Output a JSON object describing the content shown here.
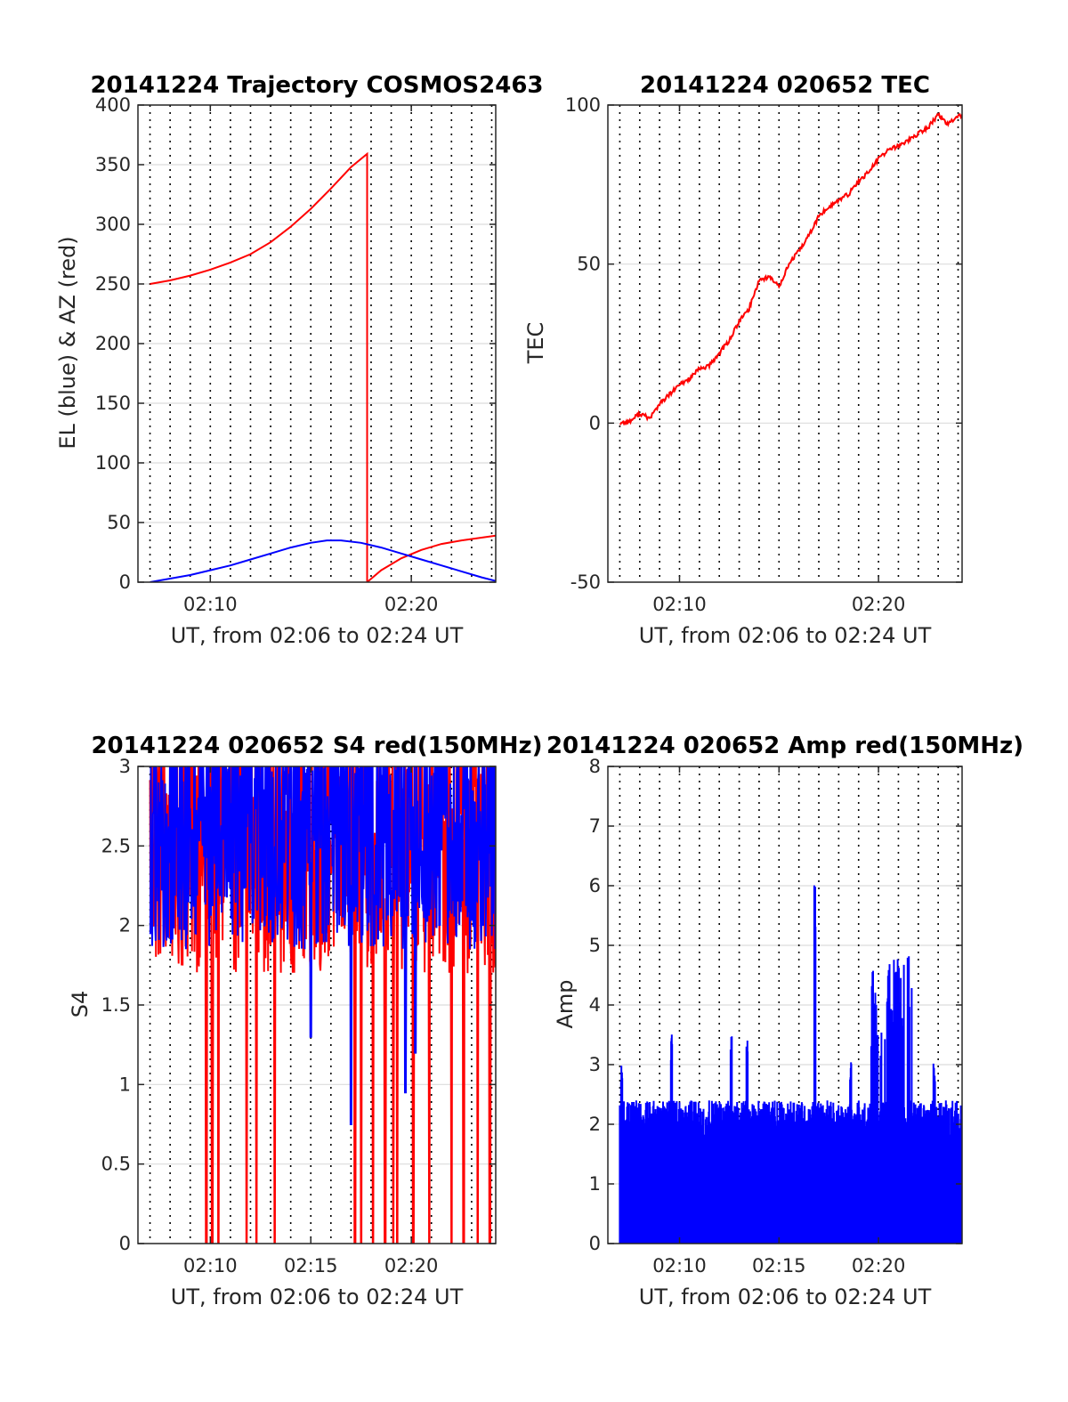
{
  "colors": {
    "az": "#ff0000",
    "el": "#0000ff",
    "tec": "#ff0000",
    "s4_red": "#ff0000",
    "s4_blue": "#0000ff",
    "amp": "#0000ff",
    "grid": "#dcdcdc",
    "axis": "#262626"
  },
  "chart_data": [
    {
      "id": "trajectory",
      "type": "line",
      "title": "20141224 Trajectory COSMOS2463",
      "xlabel": "UT, from 02:06 to 02:24 UT",
      "ylabel": "EL (blue) & AZ (red)",
      "xlim": [
        6.4,
        24.2
      ],
      "ylim": [
        0,
        400
      ],
      "x_ticks": [
        10,
        20
      ],
      "x_tick_labels": [
        "02:10",
        "02:20"
      ],
      "y_ticks": [
        0,
        50,
        100,
        150,
        200,
        250,
        300,
        350,
        400
      ],
      "y_tick_labels": [
        "0",
        "50",
        "100",
        "150",
        "200",
        "250",
        "300",
        "350",
        "400"
      ],
      "x_unit": "minutes after 02:00 UT",
      "grid": true,
      "series": [
        {
          "color": "red",
          "x": [
            7.0,
            8.0,
            9.0,
            10.0,
            11.0,
            12.0,
            13.0,
            14.0,
            15.0,
            16.0,
            17.0,
            17.8,
            17.8,
            18.5,
            19.5,
            20.5,
            21.5,
            22.5,
            24.2
          ],
          "y": [
            250,
            253,
            257,
            262,
            268,
            275,
            285,
            298,
            313,
            330,
            348,
            359,
            0,
            10,
            20,
            27,
            32,
            35,
            39
          ]
        },
        {
          "color": "blue",
          "x": [
            7.0,
            8.0,
            9.0,
            10.0,
            11.0,
            12.0,
            13.0,
            14.0,
            15.0,
            15.8,
            16.5,
            17.5,
            18.5,
            19.5,
            20.5,
            21.5,
            22.5,
            23.5,
            24.2
          ],
          "y": [
            0,
            3,
            6,
            10,
            14,
            19,
            24,
            29,
            33,
            35,
            35,
            33,
            29,
            24,
            19,
            14,
            9,
            4,
            1
          ]
        }
      ]
    },
    {
      "id": "tec",
      "type": "line",
      "title": "20141224 020652 TEC",
      "xlabel": "UT, from 02:06 to 02:24 UT",
      "ylabel": "TEC",
      "xlim": [
        6.4,
        24.2
      ],
      "ylim": [
        -50,
        100
      ],
      "x_ticks": [
        10,
        20
      ],
      "x_tick_labels": [
        "02:10",
        "02:20"
      ],
      "y_ticks": [
        -50,
        0,
        50,
        100
      ],
      "y_tick_labels": [
        "-50",
        "0",
        "50",
        "100"
      ],
      "x_unit": "minutes after 02:00 UT",
      "grid": true,
      "series": [
        {
          "color": "red",
          "x": [
            7.0,
            7.5,
            8.0,
            8.5,
            9.0,
            9.5,
            10.0,
            10.5,
            11.0,
            11.5,
            12.0,
            12.5,
            13.0,
            13.5,
            14.0,
            14.5,
            15.0,
            15.5,
            16.0,
            16.5,
            17.0,
            17.5,
            18.0,
            18.5,
            19.0,
            19.5,
            20.0,
            20.5,
            21.0,
            21.5,
            22.0,
            22.5,
            23.0,
            23.5,
            24.2
          ],
          "y": [
            0,
            0.5,
            3,
            1.5,
            6,
            9,
            12,
            14,
            17,
            18,
            22,
            26,
            32,
            36,
            45,
            46,
            43,
            50,
            54,
            59,
            65,
            68,
            70,
            72,
            76,
            79,
            83,
            86,
            87,
            89,
            91,
            93,
            97,
            94,
            97
          ]
        }
      ]
    },
    {
      "id": "s4",
      "type": "line",
      "title": "20141224 020652 S4 red(150MHz)",
      "xlabel": "UT, from 02:06 to 02:24 UT",
      "ylabel": "S4",
      "xlim": [
        6.4,
        24.2
      ],
      "ylim": [
        0,
        3
      ],
      "x_ticks": [
        10,
        15,
        20
      ],
      "x_tick_labels": [
        "02:10",
        "02:15",
        "02:20"
      ],
      "y_ticks": [
        0,
        0.5,
        1,
        1.5,
        2,
        2.5,
        3
      ],
      "y_tick_labels": [
        "0",
        "0.5",
        "1",
        "1.5",
        "2",
        "2.5",
        "3"
      ],
      "x_unit": "minutes after 02:00 UT",
      "grid": true,
      "series": [
        {
          "color": "red",
          "x_range": [
            7.0,
            24.2
          ],
          "typical_range": [
            1.3,
            3.0
          ],
          "spikes_to_zero": [
            9.8,
            10.1,
            10.4,
            11.8,
            12.3,
            13.2,
            17.2,
            17.5,
            18.1,
            18.7,
            19.1,
            19.3,
            20.1,
            20.9,
            22.0,
            22.6,
            23.3,
            23.9
          ]
        },
        {
          "color": "blue",
          "x_range": [
            7.0,
            24.2
          ],
          "typical_range": [
            1.5,
            3.0
          ],
          "dips": [
            [
              15.0,
              1.3
            ],
            [
              17.0,
              0.75
            ],
            [
              19.7,
              0.95
            ],
            [
              20.2,
              1.2
            ]
          ]
        }
      ]
    },
    {
      "id": "amp",
      "type": "line",
      "title": "20141224 020652 Amp red(150MHz)",
      "xlabel": "UT, from 02:06 to 02:24 UT",
      "ylabel": "Amp",
      "xlim": [
        6.4,
        24.2
      ],
      "ylim": [
        0,
        8
      ],
      "x_ticks": [
        10,
        15,
        20
      ],
      "x_tick_labels": [
        "02:10",
        "02:15",
        "02:20"
      ],
      "y_ticks": [
        0,
        1,
        2,
        3,
        4,
        5,
        6,
        7,
        8
      ],
      "y_tick_labels": [
        "0",
        "1",
        "2",
        "3",
        "4",
        "5",
        "6",
        "7",
        "8"
      ],
      "x_unit": "minutes after 02:00 UT",
      "grid": true,
      "series": [
        {
          "color": "blue",
          "x_range": [
            7.0,
            24.2
          ],
          "typical_peak": [
            1.7,
            2.4
          ],
          "peaks": [
            [
              7.1,
              3.0
            ],
            [
              9.6,
              3.6
            ],
            [
              12.6,
              3.5
            ],
            [
              13.4,
              3.6
            ],
            [
              16.8,
              6.2
            ],
            [
              18.6,
              3.2
            ],
            [
              19.7,
              5.0
            ],
            [
              20.5,
              4.7
            ],
            [
              21.0,
              4.8
            ],
            [
              21.5,
              5.2
            ],
            [
              22.8,
              3.1
            ]
          ]
        }
      ]
    }
  ]
}
